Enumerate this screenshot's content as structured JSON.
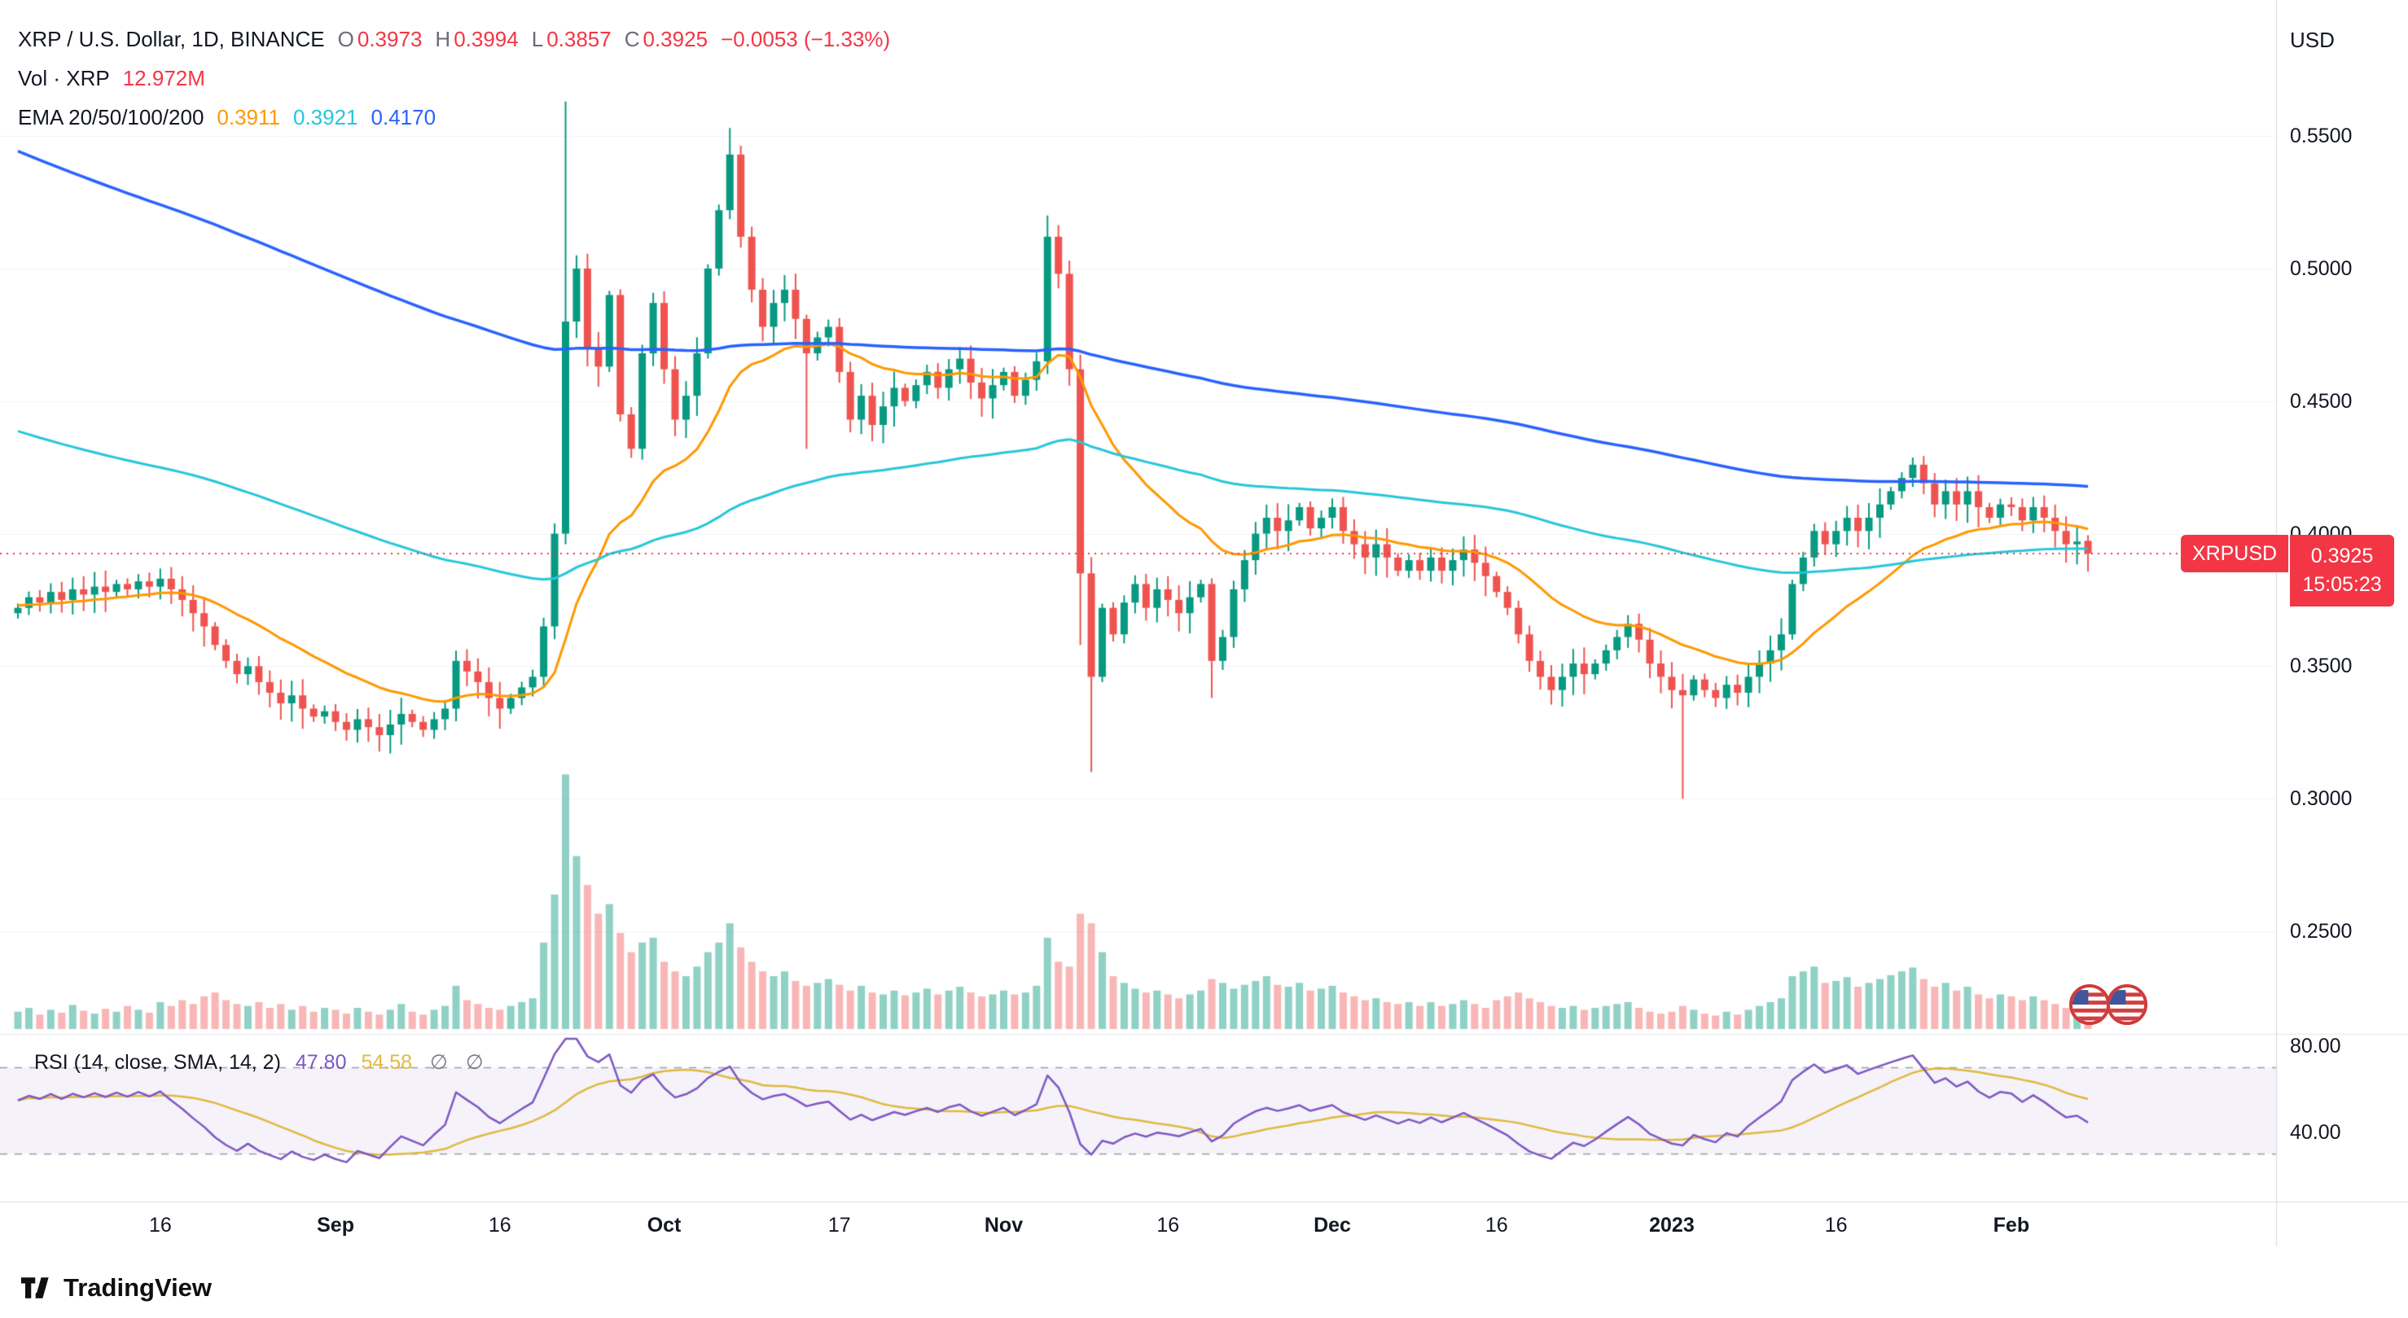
{
  "header": {
    "symbol_title": "XRP / U.S. Dollar, 1D, BINANCE",
    "ohlc": {
      "o_label": "O",
      "o_value": "0.3973",
      "h_label": "H",
      "h_value": "0.3994",
      "l_label": "L",
      "l_value": "0.3857",
      "c_label": "C",
      "c_value": "0.3925",
      "change": "−0.0053 (−1.33%)"
    },
    "volume_row": {
      "label": "Vol · XRP",
      "value": "12.972M"
    },
    "ema_row": {
      "label": "EMA 20/50/100/200",
      "fast": "0.3911",
      "mid": "0.3921",
      "slow": "0.4170"
    }
  },
  "price_axis": {
    "currency": "USD",
    "ticks": [
      {
        "label": "0.5500",
        "value": 0.55
      },
      {
        "label": "0.5000",
        "value": 0.5
      },
      {
        "label": "0.4500",
        "value": 0.45
      },
      {
        "label": "0.4000",
        "value": 0.4
      },
      {
        "label": "0.3500",
        "value": 0.35
      },
      {
        "label": "0.3000",
        "value": 0.3
      },
      {
        "label": "0.2500",
        "value": 0.25
      }
    ]
  },
  "price_badge": {
    "symbol": "XRPUSD",
    "price": "0.3925",
    "countdown": "15:05:23"
  },
  "time_axis": {
    "ticks": [
      {
        "label": "16",
        "day": 13
      },
      {
        "label": "Sep",
        "day": 29
      },
      {
        "label": "16",
        "day": 44
      },
      {
        "label": "Oct",
        "day": 59
      },
      {
        "label": "17",
        "day": 75
      },
      {
        "label": "Nov",
        "day": 90
      },
      {
        "label": "16",
        "day": 105
      },
      {
        "label": "Dec",
        "day": 120
      },
      {
        "label": "16",
        "day": 135
      },
      {
        "label": "2023",
        "day": 151
      },
      {
        "label": "16",
        "day": 166
      },
      {
        "label": "Feb",
        "day": 182
      }
    ]
  },
  "rsi_pane": {
    "title": "RSI (14, close, SMA, 14, 2)",
    "value": "47.80",
    "ma_value": "54.58",
    "slot1": "∅",
    "slot2": "∅",
    "axis_ticks": [
      {
        "label": "80.00",
        "value": 80
      },
      {
        "label": "40.00",
        "value": 40
      }
    ],
    "upper_band": 70,
    "lower_band": 30
  },
  "branding": {
    "logo": "TradingView"
  },
  "icons": {
    "event_flags": [
      "us-flag",
      "us-flag"
    ]
  },
  "colors": {
    "up": "#089981",
    "down": "#ef5350",
    "vol_up": "rgba(8,153,129,0.45)",
    "vol_down": "rgba(239,83,80,0.42)",
    "ema_fast": "#ff9800",
    "ema_mid": "#26c6da",
    "ema_slow": "#2962ff",
    "rsi": "#7e57c2",
    "rsi_ma": "#e0b93f",
    "last_price": "#f23645",
    "axis_text": "#131722",
    "muted_text": "#6a6d78",
    "grid": "#f3f4f7",
    "separator": "#d6d9e0",
    "separator_light": "#e6e8ee",
    "rsi_band": "rgba(126,87,194,0.08)",
    "rsi_level_line": "#9b9eab"
  },
  "chart_data": [
    {
      "type": "candlestick",
      "name": "XRP/USD 1D",
      "ylim": [
        0.213,
        0.601
      ],
      "first_open": 0.37,
      "closes": [
        0.372,
        0.376,
        0.374,
        0.378,
        0.375,
        0.379,
        0.377,
        0.38,
        0.378,
        0.381,
        0.379,
        0.382,
        0.38,
        0.383,
        0.379,
        0.375,
        0.37,
        0.365,
        0.358,
        0.352,
        0.347,
        0.35,
        0.344,
        0.34,
        0.336,
        0.339,
        0.334,
        0.331,
        0.333,
        0.329,
        0.326,
        0.33,
        0.327,
        0.324,
        0.328,
        0.332,
        0.329,
        0.326,
        0.33,
        0.334,
        0.352,
        0.348,
        0.344,
        0.338,
        0.334,
        0.338,
        0.342,
        0.346,
        0.365,
        0.4,
        0.48,
        0.5,
        0.47,
        0.463,
        0.49,
        0.445,
        0.432,
        0.468,
        0.487,
        0.462,
        0.443,
        0.452,
        0.468,
        0.5,
        0.522,
        0.543,
        0.512,
        0.492,
        0.478,
        0.487,
        0.492,
        0.481,
        0.468,
        0.474,
        0.478,
        0.461,
        0.443,
        0.452,
        0.441,
        0.448,
        0.455,
        0.45,
        0.456,
        0.461,
        0.455,
        0.462,
        0.466,
        0.457,
        0.451,
        0.456,
        0.461,
        0.452,
        0.458,
        0.465,
        0.512,
        0.498,
        0.462,
        0.385,
        0.346,
        0.372,
        0.362,
        0.374,
        0.381,
        0.372,
        0.379,
        0.375,
        0.37,
        0.376,
        0.381,
        0.352,
        0.361,
        0.379,
        0.39,
        0.4,
        0.406,
        0.401,
        0.405,
        0.41,
        0.402,
        0.406,
        0.41,
        0.401,
        0.396,
        0.391,
        0.396,
        0.391,
        0.386,
        0.39,
        0.386,
        0.391,
        0.386,
        0.39,
        0.394,
        0.389,
        0.384,
        0.378,
        0.372,
        0.362,
        0.352,
        0.346,
        0.341,
        0.346,
        0.351,
        0.347,
        0.351,
        0.356,
        0.361,
        0.366,
        0.36,
        0.351,
        0.346,
        0.341,
        0.339,
        0.345,
        0.341,
        0.338,
        0.343,
        0.34,
        0.346,
        0.351,
        0.356,
        0.362,
        0.381,
        0.391,
        0.401,
        0.396,
        0.401,
        0.406,
        0.401,
        0.406,
        0.411,
        0.416,
        0.421,
        0.426,
        0.419,
        0.411,
        0.416,
        0.411,
        0.416,
        0.41,
        0.406,
        0.411,
        0.41,
        0.405,
        0.41,
        0.406,
        0.401,
        0.396,
        0.397,
        0.3925
      ],
      "overrides": {
        "50": {
          "o": 0.4,
          "h": 0.563,
          "l": 0.396,
          "c": 0.48
        },
        "65": {
          "h": 0.553
        },
        "72": {
          "l": 0.432
        },
        "94": {
          "h": 0.52
        },
        "97": {
          "l": 0.358
        },
        "98": {
          "l": 0.31
        },
        "109": {
          "l": 0.338
        },
        "152": {
          "l": 0.3
        },
        "189": {
          "o": 0.3973,
          "h": 0.3994,
          "l": 0.3857,
          "c": 0.3925
        }
      },
      "ema_overlays": {
        "fast": {
          "period": 20,
          "seed": 0.373
        },
        "mid": {
          "period": 100,
          "seed": 0.44
        },
        "slow": {
          "period": 200,
          "seed": 0.546
        }
      }
    },
    {
      "type": "bar",
      "name": "Volume",
      "unit": "M XRP",
      "values": [
        18,
        22,
        15,
        20,
        17,
        25,
        19,
        16,
        21,
        18,
        24,
        20,
        17,
        28,
        24,
        30,
        26,
        34,
        38,
        30,
        26,
        24,
        28,
        22,
        26,
        20,
        24,
        18,
        22,
        20,
        16,
        22,
        18,
        15,
        20,
        26,
        18,
        15,
        20,
        24,
        45,
        30,
        26,
        22,
        20,
        24,
        28,
        32,
        90,
        140,
        265,
        180,
        150,
        120,
        130,
        100,
        80,
        90,
        95,
        70,
        60,
        55,
        65,
        80,
        90,
        110,
        85,
        70,
        60,
        55,
        60,
        50,
        45,
        48,
        52,
        46,
        40,
        45,
        38,
        36,
        40,
        35,
        38,
        42,
        36,
        40,
        44,
        38,
        34,
        36,
        40,
        36,
        38,
        45,
        95,
        70,
        65,
        120,
        110,
        80,
        55,
        48,
        42,
        38,
        40,
        36,
        32,
        36,
        40,
        52,
        48,
        42,
        46,
        50,
        55,
        46,
        44,
        48,
        40,
        42,
        45,
        38,
        34,
        30,
        32,
        28,
        26,
        28,
        24,
        28,
        24,
        26,
        30,
        26,
        22,
        30,
        34,
        38,
        32,
        28,
        24,
        22,
        24,
        20,
        22,
        24,
        26,
        28,
        22,
        18,
        16,
        18,
        24,
        20,
        16,
        14,
        18,
        15,
        20,
        24,
        28,
        32,
        55,
        60,
        65,
        48,
        50,
        54,
        44,
        48,
        52,
        56,
        60,
        64,
        52,
        44,
        48,
        40,
        44,
        36,
        32,
        36,
        34,
        30,
        34,
        30,
        26,
        22,
        18,
        12.972
      ]
    },
    {
      "type": "line",
      "name": "RSI",
      "ylim": [
        0,
        100
      ],
      "period": 14,
      "sma_period": 14,
      "seed_avg_gain": 0.0034,
      "seed_avg_loss": 0.0028,
      "levels": [
        70,
        30
      ],
      "axis_tick_values": [
        80,
        40
      ]
    }
  ]
}
